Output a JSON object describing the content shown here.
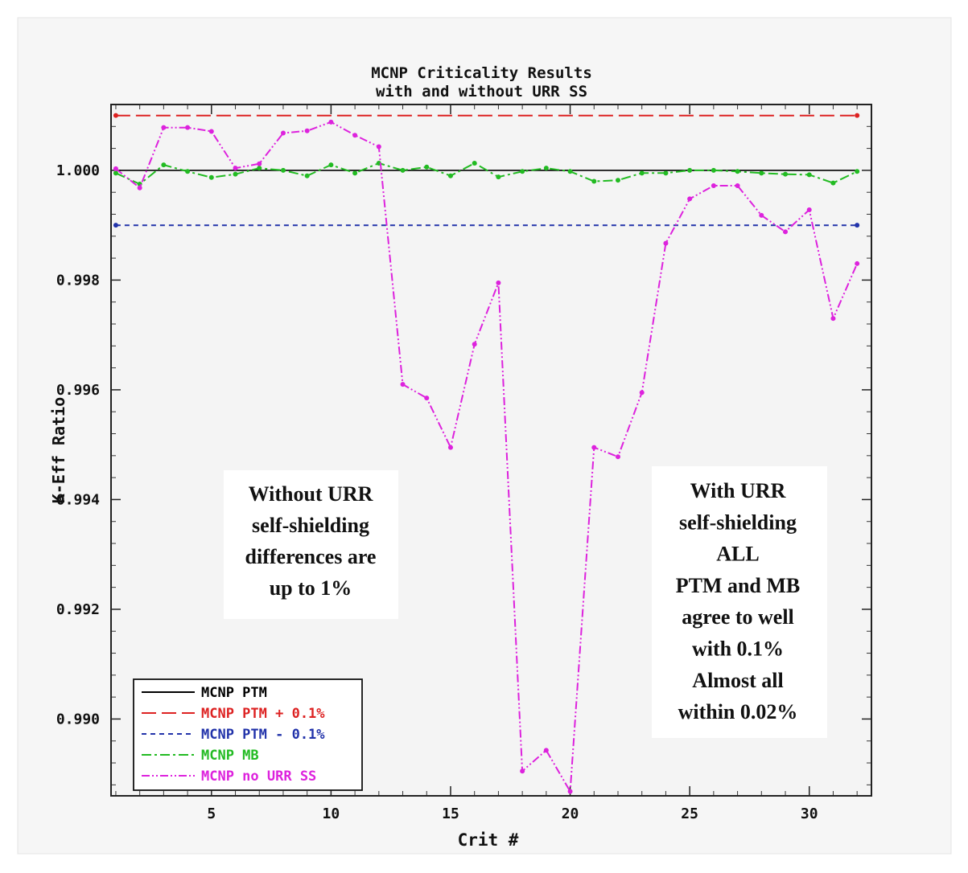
{
  "chart_data": {
    "type": "line",
    "title_lines": [
      "MCNP Criticality Results",
      "with and without URR SS"
    ],
    "xlabel": "Crit #",
    "ylabel": "K-Eff Ratio",
    "xlim": [
      0.8,
      32.6
    ],
    "ylim": [
      0.9886,
      1.0012
    ],
    "xticks": [
      5,
      10,
      15,
      20,
      25,
      30
    ],
    "xtick_labels": [
      "5",
      "10",
      "15",
      "20",
      "25",
      "30"
    ],
    "yticks": [
      0.99,
      0.992,
      0.994,
      0.996,
      0.998,
      1.0
    ],
    "ytick_labels": [
      "0.990",
      "0.992",
      "0.994",
      "0.996",
      "0.998",
      "1.000"
    ],
    "grid": false,
    "legend_position": "bottom-left",
    "x": [
      1,
      2,
      3,
      4,
      5,
      6,
      7,
      8,
      9,
      10,
      11,
      12,
      13,
      14,
      15,
      16,
      17,
      18,
      19,
      20,
      21,
      22,
      23,
      24,
      25,
      26,
      27,
      28,
      29,
      30,
      31,
      32
    ],
    "series": [
      {
        "name": "MCNP PTM",
        "color": "#000000",
        "dash": "solid",
        "markers": false,
        "values": [
          1.0,
          1.0,
          1.0,
          1.0,
          1.0,
          1.0,
          1.0,
          1.0,
          1.0,
          1.0,
          1.0,
          1.0,
          1.0,
          1.0,
          1.0,
          1.0,
          1.0,
          1.0,
          1.0,
          1.0,
          1.0,
          1.0,
          1.0,
          1.0,
          1.0,
          1.0,
          1.0,
          1.0,
          1.0,
          1.0,
          1.0,
          1.0
        ]
      },
      {
        "name": "MCNP PTM + 0.1%",
        "color": "#dd2222",
        "dash": "long",
        "markers": "ends",
        "values": [
          1.001,
          1.001,
          1.001,
          1.001,
          1.001,
          1.001,
          1.001,
          1.001,
          1.001,
          1.001,
          1.001,
          1.001,
          1.001,
          1.001,
          1.001,
          1.001,
          1.001,
          1.001,
          1.001,
          1.001,
          1.001,
          1.001,
          1.001,
          1.001,
          1.001,
          1.001,
          1.001,
          1.001,
          1.001,
          1.001,
          1.001,
          1.001
        ]
      },
      {
        "name": "MCNP PTM - 0.1%",
        "color": "#2233aa",
        "dash": "short",
        "markers": "ends",
        "values": [
          0.999,
          0.999,
          0.999,
          0.999,
          0.999,
          0.999,
          0.999,
          0.999,
          0.999,
          0.999,
          0.999,
          0.999,
          0.999,
          0.999,
          0.999,
          0.999,
          0.999,
          0.999,
          0.999,
          0.999,
          0.999,
          0.999,
          0.999,
          0.999,
          0.999,
          0.999,
          0.999,
          0.999,
          0.999,
          0.999,
          0.999,
          0.999
        ]
      },
      {
        "name": "MCNP MB",
        "color": "#22bb22",
        "dash": "dashdot",
        "markers": true,
        "values": [
          0.99995,
          0.99975,
          1.0001,
          0.99998,
          0.99987,
          0.99993,
          1.00004,
          1.0,
          0.9999,
          1.0001,
          0.99995,
          1.00013,
          1.0,
          1.00006,
          0.9999,
          1.00013,
          0.99988,
          0.99998,
          1.00004,
          0.99998,
          0.9998,
          0.99982,
          0.99995,
          0.99995,
          1.0,
          1.0,
          0.99998,
          0.99995,
          0.99993,
          0.99992,
          0.99977,
          0.99998
        ]
      },
      {
        "name": "MCNP no URR SS",
        "color": "#dd22dd",
        "dash": "dashdotdot",
        "markers": true,
        "values": [
          1.00003,
          0.99968,
          1.00078,
          1.00078,
          1.00071,
          1.00004,
          1.00012,
          1.00068,
          1.00072,
          1.00088,
          1.00064,
          1.00043,
          0.9961,
          0.99585,
          0.99495,
          0.99683,
          0.99795,
          0.98905,
          0.98943,
          0.98868,
          0.99495,
          0.99478,
          0.99595,
          0.99867,
          0.99948,
          0.99972,
          0.99972,
          0.99918,
          0.99888,
          0.99928,
          0.9973,
          0.9983
        ]
      }
    ],
    "annotations": [
      {
        "lines": [
          "Without URR",
          "self-shielding",
          "differences are",
          "up to 1%"
        ]
      },
      {
        "lines": [
          "With URR",
          "self-shielding",
          "ALL",
          "PTM and MB",
          "agree to well",
          "with 0.1%",
          "Almost all",
          "within 0.02%"
        ]
      }
    ]
  }
}
